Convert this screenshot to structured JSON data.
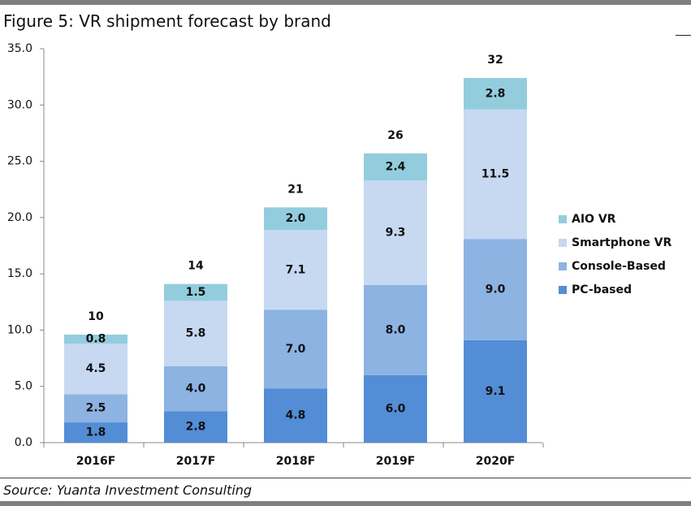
{
  "figure": {
    "title": "Figure 5: VR shipment forecast by brand",
    "source": "Source: Yuanta Investment Consulting"
  },
  "chart_data": {
    "type": "bar",
    "stacked": true,
    "categories": [
      "2016F",
      "2017F",
      "2018F",
      "2019F",
      "2020F"
    ],
    "series": [
      {
        "name": "PC-based",
        "values": [
          1.8,
          2.8,
          4.8,
          6.0,
          9.1
        ],
        "color": "#538dd5"
      },
      {
        "name": "Console-Based",
        "values": [
          2.5,
          4.0,
          7.0,
          8.0,
          9.0
        ],
        "color": "#8db3e2"
      },
      {
        "name": "Smartphone VR",
        "values": [
          4.5,
          5.8,
          7.1,
          9.3,
          11.5
        ],
        "color": "#c6d9f1"
      },
      {
        "name": "AIO VR",
        "values": [
          0.8,
          1.5,
          2.0,
          2.4,
          2.8
        ],
        "color": "#93cddd"
      }
    ],
    "value_labels": [
      [
        "1.8",
        "2.8",
        "4.8",
        "6.0",
        "9.1"
      ],
      [
        "2.5",
        "4.0",
        "7.0",
        "8.0",
        "9.0"
      ],
      [
        "4.5",
        "5.8",
        "7.1",
        "9.3",
        "11.5"
      ],
      [
        "0.8",
        "1.5",
        "2.0",
        "2.4",
        "2.8"
      ]
    ],
    "totals": [
      "10",
      "14",
      "21",
      "26",
      "32"
    ],
    "yticks": [
      "0.0",
      "5.0",
      "10.0",
      "15.0",
      "20.0",
      "25.0",
      "30.0",
      "35.0"
    ],
    "ylim": [
      0,
      35
    ],
    "legend_position": "right",
    "legend_order": [
      "AIO VR",
      "Smartphone VR",
      "Console-Based",
      "PC-based"
    ],
    "grid": false
  }
}
